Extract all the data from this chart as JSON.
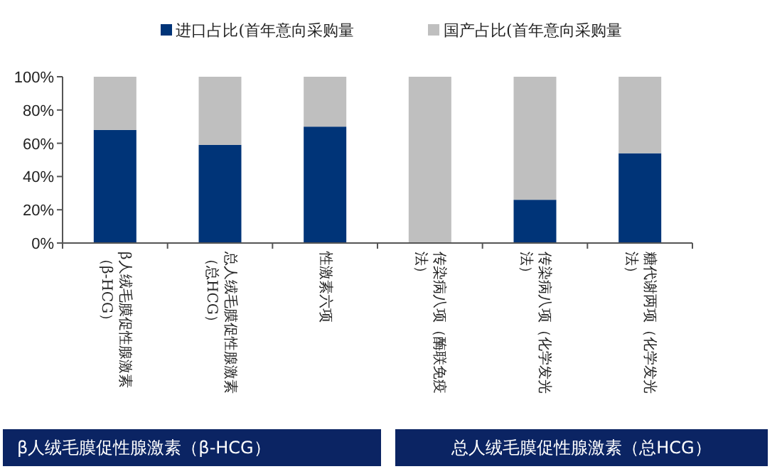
{
  "chart_data": {
    "type": "bar",
    "stacked": true,
    "legend": "top",
    "grid": false,
    "categories": [
      "β人绒毛膜促性腺激素（β-HCG）",
      "总人绒毛膜促性腺激素（总HCG）",
      "性激素六项",
      "传染病八项（酶联免疫法）",
      "传染病八项（化学发光法）",
      "糖代谢两项（化学发光法）"
    ],
    "series": [
      {
        "name": "进口占比(首年意向采购量",
        "color": "#003478",
        "values": [
          68,
          59,
          70,
          0,
          26,
          54
        ]
      },
      {
        "name": "国产占比(首年意向采购量",
        "color": "#bfbfbf",
        "values": [
          32,
          41,
          30,
          100,
          74,
          46
        ]
      }
    ],
    "ylim": [
      0,
      100
    ],
    "yticks": [
      {
        "value": 0,
        "label": "0%"
      },
      {
        "value": 20,
        "label": "20%"
      },
      {
        "value": 40,
        "label": "40%"
      },
      {
        "value": 60,
        "label": "60%"
      },
      {
        "value": 80,
        "label": "80%"
      },
      {
        "value": 100,
        "label": "100%"
      }
    ],
    "annotations": [
      "β人绒毛膜促性腺激素（β-HCG）",
      "总人绒毛膜促性腺激素（总HCG）"
    ]
  }
}
